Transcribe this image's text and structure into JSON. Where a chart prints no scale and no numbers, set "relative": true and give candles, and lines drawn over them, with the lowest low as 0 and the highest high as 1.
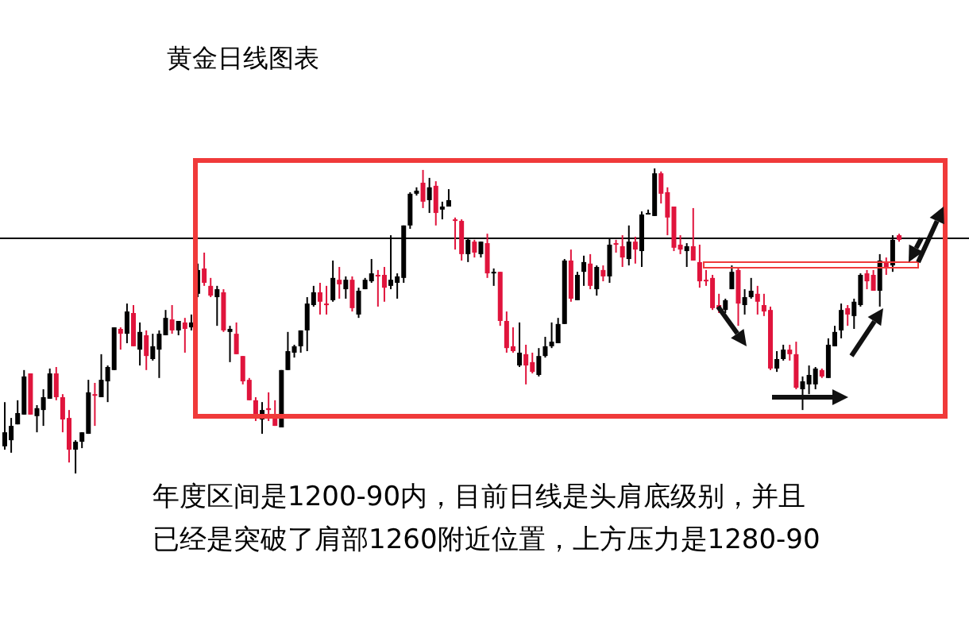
{
  "chart_data": {
    "type": "candlestick",
    "title": "黄金日线图表",
    "relative": true,
    "annotations": [
      "年度区间是1200-90内，目前日线是头肩底级别，并且",
      "已经是突破了肩部1260附近位置，上方压力是1280-90"
    ],
    "ref_lines": [
      {
        "axis": "y",
        "value": 0.771,
        "color": "#000000"
      }
    ],
    "categories": [
      null,
      null,
      null,
      null,
      null,
      null,
      null,
      null,
      null,
      null,
      null,
      null,
      null,
      null,
      null,
      null,
      null,
      null,
      null,
      null,
      null,
      null,
      null,
      null,
      null,
      null,
      null,
      null,
      null,
      null,
      null,
      null,
      null,
      null,
      null,
      null,
      null,
      null,
      null,
      null,
      null,
      null,
      null,
      null,
      null,
      null,
      null,
      null,
      null,
      null,
      null,
      null,
      null,
      null,
      null,
      null,
      null,
      null,
      null,
      null,
      null,
      null,
      null,
      null,
      null,
      null,
      null,
      null,
      null,
      null,
      null,
      null,
      null,
      null,
      null,
      null,
      null,
      null,
      null,
      null,
      null,
      null,
      null,
      null,
      null,
      null,
      null,
      null,
      null,
      null,
      null,
      null,
      null,
      null,
      null,
      null,
      null,
      null,
      null,
      null,
      null,
      null,
      null,
      null,
      null,
      null,
      null,
      null,
      null,
      null,
      null,
      null,
      null,
      null,
      null,
      null,
      null,
      null,
      null,
      null,
      null,
      null,
      null,
      null,
      null,
      null,
      null,
      null,
      null,
      null,
      null,
      null,
      null,
      null,
      null,
      null,
      null,
      null,
      null,
      null
    ],
    "ohlc": [
      [
        0.089,
        0.234,
        0.078,
        0.135
      ],
      [
        0.109,
        0.182,
        0.068,
        0.156
      ],
      [
        0.161,
        0.24,
        0.161,
        0.198
      ],
      [
        0.193,
        0.339,
        0.193,
        0.318
      ],
      [
        0.328,
        0.328,
        0.193,
        0.193
      ],
      [
        0.188,
        0.224,
        0.135,
        0.214
      ],
      [
        0.208,
        0.276,
        0.156,
        0.25
      ],
      [
        0.245,
        0.344,
        0.245,
        0.328
      ],
      [
        0.328,
        0.349,
        0.24,
        0.25
      ],
      [
        0.25,
        0.26,
        0.135,
        0.177
      ],
      [
        0.182,
        0.208,
        0.036,
        0.078
      ],
      [
        0.078,
        0.109,
        0,
        0.104
      ],
      [
        0.104,
        0.135,
        0.083,
        0.135
      ],
      [
        0.13,
        0.307,
        0.13,
        0.266
      ],
      [
        0.26,
        0.297,
        0.156,
        0.255
      ],
      [
        0.25,
        0.391,
        0.25,
        0.307
      ],
      [
        0.302,
        0.354,
        0.234,
        0.349
      ],
      [
        0.339,
        0.479,
        0.339,
        0.479
      ],
      [
        0.474,
        0.479,
        0.406,
        0.458
      ],
      [
        0.458,
        0.557,
        0.427,
        0.531
      ],
      [
        0.526,
        0.552,
        0.417,
        0.417
      ],
      [
        0.406,
        0.495,
        0.354,
        0.464
      ],
      [
        0.453,
        0.469,
        0.339,
        0.385
      ],
      [
        0.375,
        0.458,
        0.37,
        0.417
      ],
      [
        0.406,
        0.469,
        0.313,
        0.458
      ],
      [
        0.453,
        0.536,
        0.453,
        0.51
      ],
      [
        0.505,
        0.552,
        0.458,
        0.469
      ],
      [
        0.469,
        0.5,
        0.453,
        0.5
      ],
      [
        0.495,
        0.51,
        0.396,
        0.474
      ],
      [
        0.479,
        0.521,
        0.469,
        0.495
      ],
      [
        0.589,
        0.688,
        0.578,
        0.667
      ],
      [
        0.672,
        0.724,
        0.615,
        0.625
      ],
      [
        0.615,
        0.641,
        0.578,
        0.583
      ],
      [
        0.578,
        0.615,
        0.484,
        0.604
      ],
      [
        0.594,
        0.604,
        0.464,
        0.469
      ],
      [
        0.464,
        0.484,
        0.365,
        0.474
      ],
      [
        0.458,
        0.495,
        0.391,
        0.391
      ],
      [
        0.385,
        0.385,
        0.292,
        0.302
      ],
      [
        0.307,
        0.313,
        0.24,
        0.24
      ],
      [
        0.24,
        0.25,
        0.172,
        0.188
      ],
      [
        0.177,
        0.234,
        0.13,
        0.208
      ],
      [
        0.214,
        0.266,
        0.172,
        0.208
      ],
      [
        0.188,
        0.24,
        0.156,
        0.156
      ],
      [
        0.151,
        0.339,
        0.151,
        0.339
      ],
      [
        0.339,
        0.464,
        0.339,
        0.401
      ],
      [
        0.396,
        0.422,
        0.38,
        0.417
      ],
      [
        0.417,
        0.469,
        0.396,
        0.469
      ],
      [
        0.469,
        0.578,
        0.401,
        0.557
      ],
      [
        0.552,
        0.615,
        0.547,
        0.594
      ],
      [
        0.594,
        0.625,
        0.521,
        0.563
      ],
      [
        0.557,
        0.615,
        0.521,
        0.552
      ],
      [
        0.568,
        0.698,
        0.563,
        0.641
      ],
      [
        0.635,
        0.677,
        0.573,
        0.62
      ],
      [
        0.604,
        0.646,
        0.573,
        0.635
      ],
      [
        0.635,
        0.646,
        0.531,
        0.542
      ],
      [
        0.521,
        0.609,
        0.51,
        0.599
      ],
      [
        0.604,
        0.641,
        0.604,
        0.635
      ],
      [
        0.63,
        0.703,
        0.625,
        0.656
      ],
      [
        0.651,
        0.667,
        0.547,
        0.646
      ],
      [
        0.651,
        0.677,
        0.563,
        0.609
      ],
      [
        0.615,
        0.781,
        0.604,
        0.635
      ],
      [
        0.625,
        0.656,
        0.573,
        0.646
      ],
      [
        0.641,
        0.813,
        0.625,
        0.813
      ],
      [
        0.813,
        0.922,
        0.802,
        0.917
      ],
      [
        0.917,
        0.938,
        0.911,
        0.927
      ],
      [
        0.953,
        0.995,
        0.87,
        0.891
      ],
      [
        0.896,
        0.969,
        0.854,
        0.938
      ],
      [
        0.943,
        0.958,
        0.813,
        0.854
      ],
      [
        0.865,
        0.891,
        0.833,
        0.875
      ],
      [
        0.875,
        0.932,
        0.875,
        0.896
      ],
      [
        0.833,
        0.839,
        0.734,
        0.828
      ],
      [
        0.828,
        0.833,
        0.698,
        0.719
      ],
      [
        0.719,
        0.771,
        0.693,
        0.766
      ],
      [
        0.76,
        0.766,
        0.708,
        0.724
      ],
      [
        0.719,
        0.76,
        0.708,
        0.76
      ],
      [
        0.755,
        0.786,
        0.641,
        0.656
      ],
      [
        0.656,
        0.672,
        0.615,
        0.661
      ],
      [
        0.661,
        0.661,
        0.484,
        0.5
      ],
      [
        0.5,
        0.531,
        0.396,
        0.411
      ],
      [
        0.417,
        0.479,
        0.396,
        0.401
      ],
      [
        0.354,
        0.495,
        0.349,
        0.396
      ],
      [
        0.391,
        0.422,
        0.292,
        0.354
      ],
      [
        0.365,
        0.396,
        0.328,
        0.333
      ],
      [
        0.323,
        0.411,
        0.318,
        0.385
      ],
      [
        0.385,
        0.448,
        0.38,
        0.417
      ],
      [
        0.417,
        0.495,
        0.411,
        0.432
      ],
      [
        0.427,
        0.51,
        0.427,
        0.49
      ],
      [
        0.49,
        0.703,
        0.49,
        0.698
      ],
      [
        0.698,
        0.734,
        0.563,
        0.573
      ],
      [
        0.568,
        0.661,
        0.568,
        0.651
      ],
      [
        0.661,
        0.714,
        0.615,
        0.693
      ],
      [
        0.688,
        0.719,
        0.604,
        0.615
      ],
      [
        0.604,
        0.682,
        0.583,
        0.677
      ],
      [
        0.667,
        0.682,
        0.63,
        0.646
      ],
      [
        0.646,
        0.771,
        0.625,
        0.75
      ],
      [
        0.755,
        0.766,
        0.724,
        0.75
      ],
      [
        0.745,
        0.781,
        0.677,
        0.708
      ],
      [
        0.703,
        0.813,
        0.682,
        0.76
      ],
      [
        0.76,
        0.776,
        0.688,
        0.734
      ],
      [
        0.729,
        0.859,
        0.677,
        0.849
      ],
      [
        0.852,
        0.865,
        0.849,
        0.854
      ],
      [
        0.844,
        1,
        0.844,
        0.984
      ],
      [
        0.984,
        0.99,
        0.885,
        0.917
      ],
      [
        0.922,
        0.938,
        0.781,
        0.839
      ],
      [
        0.875,
        0.875,
        0.729,
        0.74
      ],
      [
        0.75,
        0.781,
        0.719,
        0.734
      ],
      [
        0.729,
        0.755,
        0.677,
        0.745
      ],
      [
        0.745,
        0.87,
        0.698,
        0.698
      ],
      [
        0.693,
        0.75,
        0.609,
        0.63
      ],
      [
        0.635,
        0.667,
        0.615,
        0.63
      ],
      [
        0.641,
        0.651,
        0.536,
        0.542
      ],
      [
        0.552,
        0.589,
        0.526,
        0.542
      ],
      [
        0.536,
        0.573,
        0.526,
        0.568
      ],
      [
        0.604,
        0.682,
        0.604,
        0.661
      ],
      [
        0.667,
        0.672,
        0.484,
        0.557
      ],
      [
        0.552,
        0.604,
        0.521,
        0.578
      ],
      [
        0.578,
        0.641,
        0.573,
        0.599
      ],
      [
        0.589,
        0.615,
        0.521,
        0.563
      ],
      [
        0.552,
        0.589,
        0.516,
        0.531
      ],
      [
        0.536,
        0.547,
        0.339,
        0.344
      ],
      [
        0.344,
        0.401,
        0.333,
        0.375
      ],
      [
        0.375,
        0.422,
        0.37,
        0.406
      ],
      [
        0.406,
        0.422,
        0.37,
        0.391
      ],
      [
        0.391,
        0.432,
        0.276,
        0.281
      ],
      [
        0.276,
        0.318,
        0.208,
        0.302
      ],
      [
        0.292,
        0.354,
        0.26,
        0.323
      ],
      [
        0.292,
        0.349,
        0.276,
        0.344
      ],
      [
        0.339,
        0.344,
        0.313,
        0.318
      ],
      [
        0.313,
        0.443,
        0.313,
        0.422
      ],
      [
        0.417,
        0.484,
        0.417,
        0.464
      ],
      [
        0.469,
        0.557,
        0.443,
        0.536
      ],
      [
        0.542,
        0.552,
        0.484,
        0.521
      ],
      [
        0.516,
        0.573,
        0.474,
        0.563
      ],
      [
        0.552,
        0.656,
        0.547,
        0.651
      ],
      [
        0.656,
        0.667,
        0.604,
        0.63
      ],
      [
        0.651,
        0.667,
        0.599,
        0.599
      ],
      [
        0.599,
        0.719,
        0.547,
        0.698
      ],
      [
        0.693,
        0.708,
        0.651,
        0.677
      ],
      [
        0.682,
        0.781,
        0.661,
        0.766
      ],
      [
        0.781,
        0.786,
        0.76,
        0.766
      ]
    ]
  }
}
